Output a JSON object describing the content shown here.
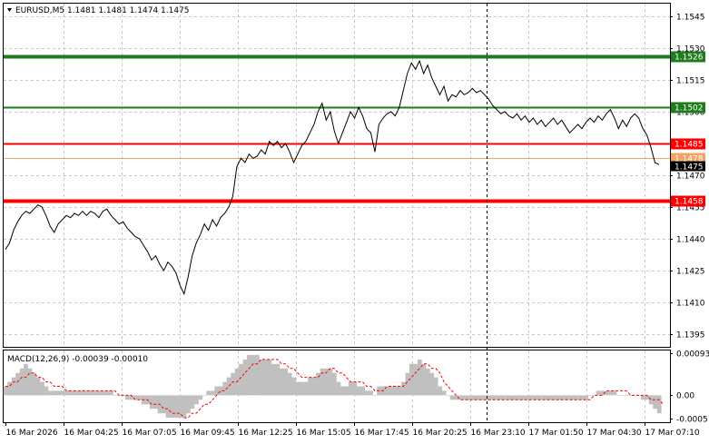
{
  "header": {
    "symbol_line": "EURUSD,M5  1.1481 1.1481 1.1474 1.1475",
    "menu_icon": "triangle-down-icon"
  },
  "macd": {
    "label": "MACD(12,26,9) -0.00039 -0.00010",
    "axis_labels": [
      "0.00093",
      "0.00",
      "-0.00051"
    ]
  },
  "levels": [
    {
      "name": "resistance-high",
      "price": 1.1526,
      "label": "1.1526",
      "color": "#1e7b1e"
    },
    {
      "name": "resistance-low",
      "price": 1.1502,
      "label": "1.1502",
      "color": "#1e7b1e"
    },
    {
      "name": "support-high",
      "price": 1.1485,
      "label": "1.1485",
      "color": "#ff0000"
    },
    {
      "name": "support-low",
      "price": 1.1458,
      "label": "1.1458",
      "color": "#ff0000"
    }
  ],
  "bid_line": {
    "price": 1.1478,
    "label": "1.1478",
    "color": "#f4a460"
  },
  "current_price": {
    "price": 1.1475,
    "label": "1.1475"
  },
  "price_axis": [
    "1.1545",
    "1.1530",
    "1.1515",
    "1.1500",
    "1.1470",
    "1.1455",
    "1.1440",
    "1.1425",
    "1.1410",
    "1.1395"
  ],
  "time_axis": [
    "16 Mar 2026",
    "16 Mar 04:25",
    "16 Mar 07:05",
    "16 Mar 09:45",
    "16 Mar 12:25",
    "16 Mar 15:05",
    "16 Mar 17:45",
    "16 Mar 20:25",
    "16 Mar 23:10",
    "17 Mar 01:50",
    "17 Mar 04:30",
    "17 Mar 07:10"
  ],
  "chart_data": {
    "type": "line",
    "title": "EURUSD,M5",
    "ylim": [
      1.1389,
      1.1551
    ],
    "prices": [
      1.1435,
      1.1438,
      1.1444,
      1.1448,
      1.1451,
      1.1453,
      1.1452,
      1.1454,
      1.1456,
      1.1455,
      1.1451,
      1.1446,
      1.1443,
      1.1447,
      1.1449,
      1.1451,
      1.145,
      1.1452,
      1.1451,
      1.1453,
      1.1451,
      1.1453,
      1.1452,
      1.145,
      1.1453,
      1.1454,
      1.1451,
      1.1449,
      1.1447,
      1.1448,
      1.1445,
      1.1443,
      1.1441,
      1.144,
      1.1437,
      1.1434,
      1.143,
      1.1432,
      1.1428,
      1.1425,
      1.1429,
      1.1427,
      1.1424,
      1.1418,
      1.1414,
      1.1422,
      1.1432,
      1.1438,
      1.1442,
      1.1447,
      1.1444,
      1.1449,
      1.1446,
      1.145,
      1.1452,
      1.1455,
      1.146,
      1.1474,
      1.1478,
      1.1476,
      1.148,
      1.1478,
      1.1479,
      1.1482,
      1.148,
      1.1486,
      1.1484,
      1.1486,
      1.1483,
      1.1485,
      1.1481,
      1.1476,
      1.148,
      1.1484,
      1.1486,
      1.149,
      1.1494,
      1.15,
      1.1504,
      1.1496,
      1.15,
      1.1491,
      1.1485,
      1.149,
      1.1495,
      1.15,
      1.1497,
      1.1502,
      1.1498,
      1.1492,
      1.149,
      1.1481,
      1.1494,
      1.1497,
      1.1499,
      1.15,
      1.1498,
      1.1502,
      1.151,
      1.1518,
      1.1523,
      1.152,
      1.1524,
      1.1518,
      1.1522,
      1.1516,
      1.1512,
      1.1508,
      1.1512,
      1.1505,
      1.1508,
      1.1507,
      1.151,
      1.1508,
      1.1509,
      1.1511,
      1.1509,
      1.151,
      1.1508,
      1.1506,
      1.1503,
      1.1501,
      1.1499,
      1.15,
      1.1498,
      1.1497,
      1.1499,
      1.1496,
      1.1498,
      1.1495,
      1.1497,
      1.1494,
      1.1496,
      1.1493,
      1.1495,
      1.1497,
      1.1494,
      1.1496,
      1.1493,
      1.149,
      1.1492,
      1.1494,
      1.1492,
      1.1495,
      1.1497,
      1.1495,
      1.1498,
      1.1496,
      1.1499,
      1.1501,
      1.1497,
      1.1492,
      1.1496,
      1.1493,
      1.1497,
      1.1499,
      1.1497,
      1.1492,
      1.1489,
      1.1483,
      1.1476,
      1.1475
    ],
    "macd": [
      0.0002,
      0.0003,
      0.0004,
      0.0005,
      0.0006,
      0.0007,
      0.0006,
      0.0005,
      0.0004,
      0.0003,
      0.0002,
      0.0001,
      0.0001,
      0.0001,
      0.0001,
      0.0001,
      0.0001,
      0.0001,
      0.0001,
      0.0001,
      0.0001,
      0.0001,
      0.0001,
      0.0001,
      0.0001,
      0.0001,
      0.0001,
      0.0,
      0.0,
      0.0,
      -0.0001,
      -0.0001,
      -0.0001,
      -0.0001,
      -0.0002,
      -0.0002,
      -0.0003,
      -0.0003,
      -0.0004,
      -0.0004,
      -0.0005,
      -0.0005,
      -0.0005,
      -0.0005,
      -0.0005,
      -0.0004,
      -0.0003,
      -0.0002,
      -0.0001,
      0.0,
      0.0001,
      0.0001,
      0.0002,
      0.0002,
      0.0003,
      0.0004,
      0.0005,
      0.0006,
      0.0007,
      0.0008,
      0.0009,
      0.0009,
      0.0009,
      0.0008,
      0.0008,
      0.0008,
      0.0007,
      0.0007,
      0.0006,
      0.0006,
      0.0005,
      0.0004,
      0.0003,
      0.0003,
      0.0003,
      0.0004,
      0.0004,
      0.0005,
      0.0006,
      0.0006,
      0.0006,
      0.0005,
      0.0003,
      0.0002,
      0.0002,
      0.0003,
      0.0003,
      0.0002,
      0.0002,
      0.0001,
      0.0001,
      0.0,
      0.0002,
      0.0002,
      0.0002,
      0.0002,
      0.0002,
      0.0002,
      0.0003,
      0.0005,
      0.0007,
      0.0007,
      0.0008,
      0.0007,
      0.0006,
      0.0005,
      0.0004,
      0.0002,
      0.0001,
      0.0,
      -0.0001,
      -0.0001,
      -0.0001,
      -0.0001,
      -0.0001,
      -0.0001,
      -0.0001,
      -0.0001,
      -0.0001,
      -0.0001,
      -0.0001,
      -0.0001,
      -0.0001,
      -0.0001,
      -0.0001,
      -0.0001,
      -0.0001,
      -0.0001,
      -0.0001,
      -0.0001,
      -0.0001,
      -0.0001,
      -0.0001,
      -0.0001,
      -0.0001,
      -0.0001,
      -0.0001,
      -0.0001,
      -0.0001,
      -0.0001,
      -0.0001,
      -0.0001,
      -0.0001,
      -0.0001,
      0.0,
      0.0,
      0.0001,
      0.0001,
      0.0001,
      0.0001,
      0.0001,
      0.0,
      0.0,
      0.0,
      0.0,
      0.0,
      0.0,
      -0.0001,
      -0.0001,
      -0.0002,
      -0.0003,
      -0.0004
    ],
    "signal": [
      0.0002,
      0.0002,
      0.0003,
      0.0003,
      0.0004,
      0.0004,
      0.0005,
      0.0005,
      0.0004,
      0.0004,
      0.0003,
      0.0003,
      0.0002,
      0.0002,
      0.0002,
      0.0001,
      0.0001,
      0.0001,
      0.0001,
      0.0001,
      0.0001,
      0.0001,
      0.0001,
      0.0001,
      0.0001,
      0.0001,
      0.0001,
      0.0001,
      0.0,
      0.0,
      0.0,
      0.0,
      -0.0001,
      -0.0001,
      -0.0001,
      -0.0001,
      -0.0002,
      -0.0002,
      -0.0002,
      -0.0003,
      -0.0003,
      -0.0004,
      -0.0004,
      -0.0004,
      -0.0005,
      -0.0005,
      -0.0004,
      -0.0004,
      -0.0003,
      -0.0002,
      -0.0002,
      -0.0001,
      0.0,
      0.0001,
      0.0001,
      0.0002,
      0.0003,
      0.0003,
      0.0004,
      0.0005,
      0.0006,
      0.0007,
      0.0007,
      0.0008,
      0.0008,
      0.0008,
      0.0008,
      0.0008,
      0.0007,
      0.0007,
      0.0006,
      0.0006,
      0.0005,
      0.0004,
      0.0004,
      0.0004,
      0.0004,
      0.0004,
      0.0005,
      0.0005,
      0.0006,
      0.0006,
      0.0005,
      0.0005,
      0.0004,
      0.0003,
      0.0003,
      0.0003,
      0.0003,
      0.0002,
      0.0002,
      0.0001,
      0.0001,
      0.0001,
      0.0002,
      0.0002,
      0.0002,
      0.0002,
      0.0002,
      0.0003,
      0.0004,
      0.0005,
      0.0006,
      0.0007,
      0.0007,
      0.0006,
      0.0006,
      0.0005,
      0.0003,
      0.0002,
      0.0001,
      0.0,
      -0.0001,
      -0.0001,
      -0.0001,
      -0.0001,
      -0.0001,
      -0.0001,
      -0.0001,
      -0.0001,
      -0.0001,
      -0.0001,
      -0.0001,
      -0.0001,
      -0.0001,
      -0.0001,
      -0.0001,
      -0.0001,
      -0.0001,
      -0.0001,
      -0.0001,
      -0.0001,
      -0.0001,
      -0.0001,
      -0.0001,
      -0.0001,
      -0.0001,
      -0.0001,
      -0.0001,
      -0.0001,
      -0.0001,
      -0.0001,
      -0.0001,
      -0.0001,
      -0.0001,
      0.0,
      0.0,
      0.0,
      0.0001,
      0.0001,
      0.0001,
      0.0001,
      0.0001,
      0.0001,
      0.0,
      0.0,
      0.0,
      0.0,
      0.0,
      -0.0001,
      -0.0001,
      -0.0001,
      -0.0002
    ]
  }
}
